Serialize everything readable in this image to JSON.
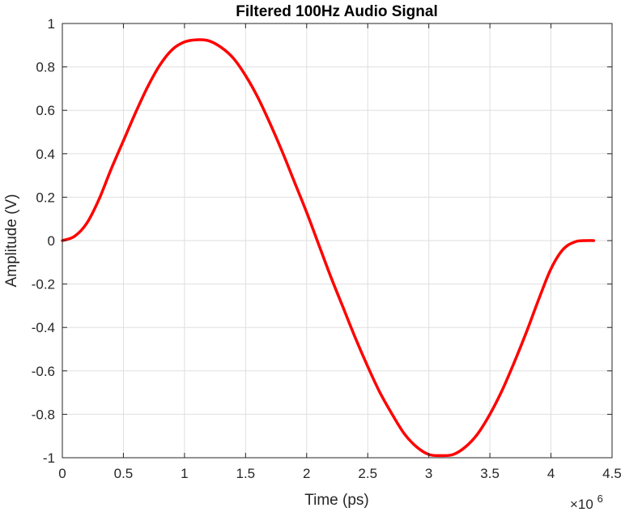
{
  "chart_data": {
    "type": "line",
    "title": "Filtered 100Hz Audio Signal",
    "xlabel": "Time (ps)",
    "ylabel": "Amplitude (V)",
    "x_exponent_prefix": "×10",
    "x_exponent_power": "6",
    "xlim": [
      0,
      4.5
    ],
    "ylim": [
      -1,
      1
    ],
    "xticks": [
      0,
      0.5,
      1,
      1.5,
      2,
      2.5,
      3,
      3.5,
      4,
      4.5
    ],
    "xtick_labels": [
      "0",
      "0.5",
      "1",
      "1.5",
      "2",
      "2.5",
      "3",
      "3.5",
      "4",
      "4.5"
    ],
    "yticks": [
      -1,
      -0.8,
      -0.6,
      -0.4,
      -0.2,
      0,
      0.2,
      0.4,
      0.6,
      0.8,
      1
    ],
    "ytick_labels": [
      "-1",
      "-0.8",
      "-0.6",
      "-0.4",
      "-0.2",
      "0",
      "0.2",
      "0.4",
      "0.6",
      "0.8",
      "1"
    ],
    "grid": true,
    "line_color": "#ff0000",
    "grid_color": "#dfdfdf",
    "axis_color": "#262626",
    "series": [
      {
        "x": [
          0,
          0.1,
          0.2,
          0.3,
          0.4,
          0.5,
          0.6,
          0.7,
          0.8,
          0.9,
          1.0,
          1.1,
          1.2,
          1.3,
          1.4,
          1.5,
          1.6,
          1.7,
          1.8,
          1.9,
          2.0,
          2.1,
          2.2,
          2.3,
          2.4,
          2.5,
          2.6,
          2.7,
          2.8,
          2.9,
          3.0,
          3.1,
          3.2,
          3.3,
          3.4,
          3.5,
          3.6,
          3.7,
          3.8,
          3.9,
          4.0,
          4.1,
          4.2,
          4.3,
          4.35
        ],
        "y": [
          0,
          0.02,
          0.08,
          0.19,
          0.33,
          0.46,
          0.59,
          0.71,
          0.81,
          0.88,
          0.915,
          0.925,
          0.92,
          0.89,
          0.84,
          0.76,
          0.66,
          0.54,
          0.41,
          0.27,
          0.13,
          -0.02,
          -0.17,
          -0.31,
          -0.45,
          -0.58,
          -0.7,
          -0.8,
          -0.89,
          -0.95,
          -0.985,
          -0.99,
          -0.985,
          -0.95,
          -0.89,
          -0.8,
          -0.69,
          -0.56,
          -0.42,
          -0.27,
          -0.13,
          -0.04,
          -0.005,
          0,
          0
        ]
      }
    ]
  }
}
